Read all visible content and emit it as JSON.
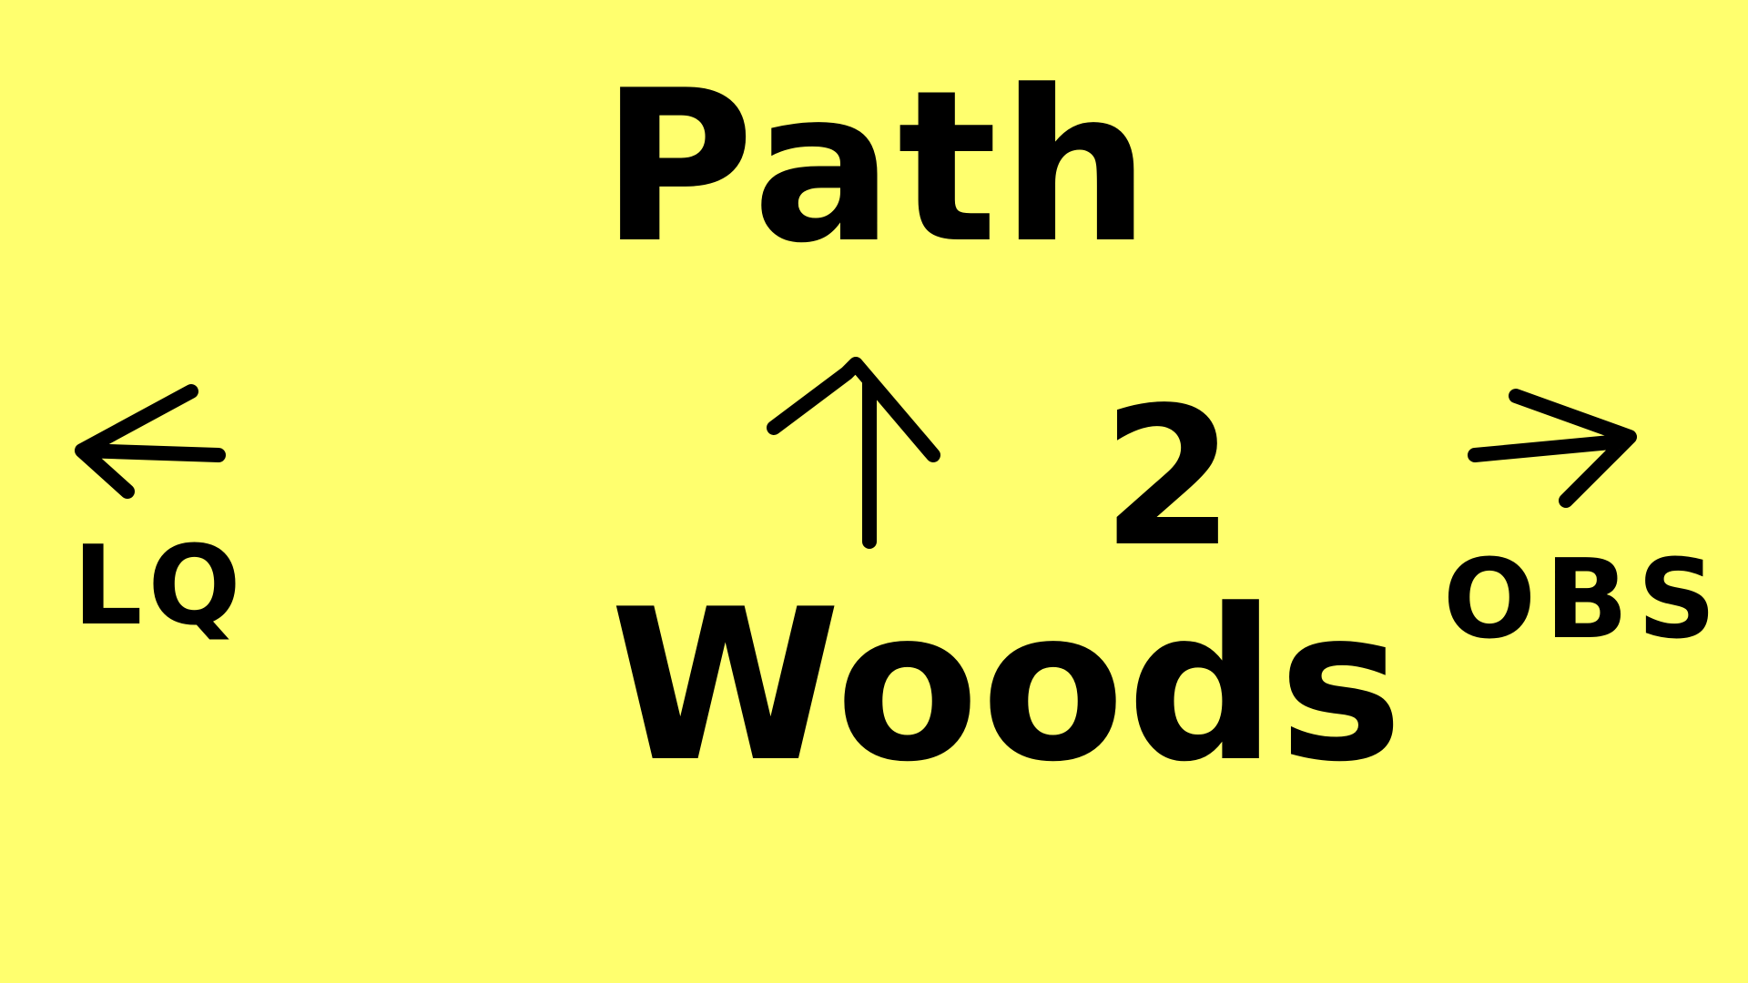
{
  "background_color": "#FFFF6E",
  "ink_color": "#000000",
  "labels": {
    "title": "Path",
    "destination": "Woods",
    "number": "2",
    "left": "LQ",
    "right": "OBS"
  },
  "arrows": {
    "up_icon": "arrow-up-icon",
    "left_icon": "arrow-left-icon",
    "right_icon": "arrow-right-icon"
  }
}
